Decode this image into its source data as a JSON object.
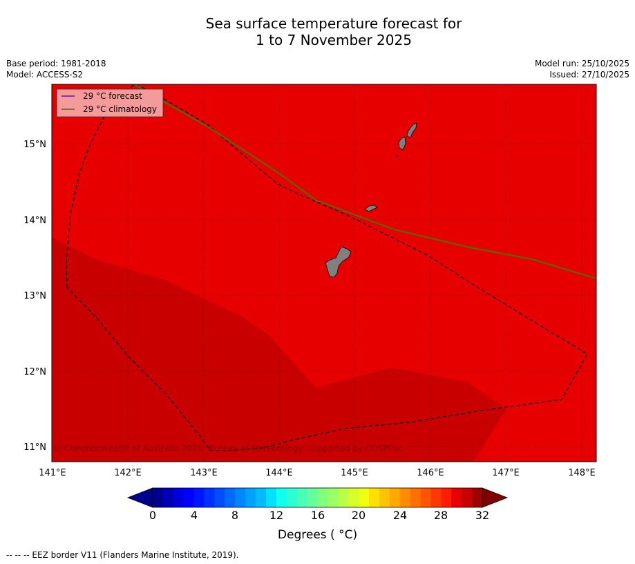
{
  "title": {
    "line1": "Sea surface temperature forecast for",
    "line2": "1 to 7 November 2025"
  },
  "info": {
    "base_period": "Base period: 1981-2018",
    "model": "Model: ACCESS-S2",
    "model_run": "Model run: 25/10/2025",
    "issued": "Issued: 27/10/2025"
  },
  "map": {
    "lat_labels": [
      "15°N",
      "14°N",
      "13°N",
      "12°N",
      "11°N"
    ],
    "lon_labels": [
      "141°E",
      "142°E",
      "143°E",
      "144°E",
      "145°E",
      "146°E",
      "147°E",
      "148°E"
    ],
    "legend": {
      "forecast": "29 °C  forecast",
      "climatology": "29 °C  climatology"
    },
    "copyright": "© Commonwealth of Australia 2025, Bureau of Meteorology, supported by COSPPac",
    "colors": {
      "warm_fill": "#e60000",
      "hot_fill": "#c80000",
      "land": "#808080",
      "forecast_line": "#6a0dad",
      "climatology_line": "#556b00"
    }
  },
  "colorbar": {
    "ticks": [
      "0",
      "4",
      "8",
      "12",
      "16",
      "20",
      "24",
      "28",
      "32"
    ],
    "label": "Degrees ( °C)",
    "colors": [
      "#00008f",
      "#0000b5",
      "#0000db",
      "#0000ff",
      "#0016ff",
      "#0032ff",
      "#004eff",
      "#006aff",
      "#0086ff",
      "#00a2ff",
      "#00bcff",
      "#00e0ff",
      "#10ffef",
      "#2cffd3",
      "#48ffb7",
      "#64ff9b",
      "#80ff7f",
      "#9cff63",
      "#b8ff47",
      "#d4ff2b",
      "#f0ff0f",
      "#ffe000",
      "#ffc400",
      "#ffa800",
      "#ff8c00",
      "#ff7000",
      "#ff5400",
      "#ff3800",
      "#ff1c00",
      "#e60000",
      "#c80000",
      "#a00000"
    ],
    "under_color": "#00008f",
    "over_color": "#800000"
  },
  "footer": "--  --  -- EEZ border V11 (Flanders Marine Institute, 2019)."
}
